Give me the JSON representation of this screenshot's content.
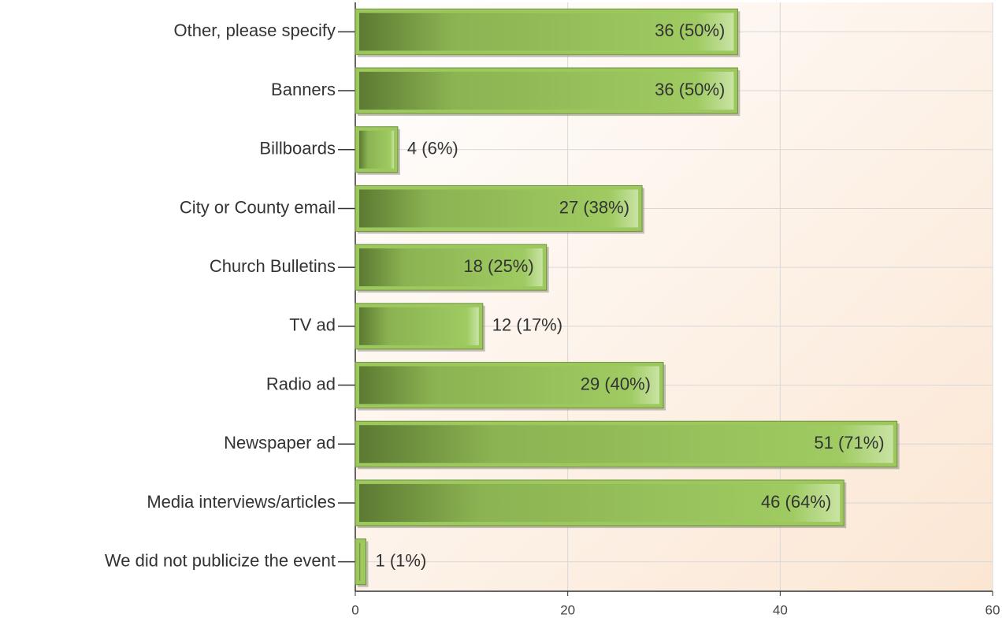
{
  "chart_data": {
    "type": "barh",
    "categories": [
      "Other, please specify",
      "Banners",
      "Billboards",
      "City or County email",
      "Church Bulletins",
      "TV ad",
      "Radio ad",
      "Newspaper ad",
      "Media interviews/articles",
      "We did not publicize the event"
    ],
    "values": [
      36,
      36,
      4,
      27,
      18,
      12,
      29,
      51,
      46,
      1
    ],
    "value_labels": [
      "36 (50%)",
      "36 (50%)",
      "4 (6%)",
      "27 (38%)",
      "18 (25%)",
      "12 (17%)",
      "29 (40%)",
      "51 (71%)",
      "46 (64%)",
      "1 (1%)"
    ],
    "color": "#9cc85e",
    "xlim": [
      0,
      60
    ],
    "xticks": [
      0,
      20,
      40,
      60
    ],
    "grid": true
  }
}
